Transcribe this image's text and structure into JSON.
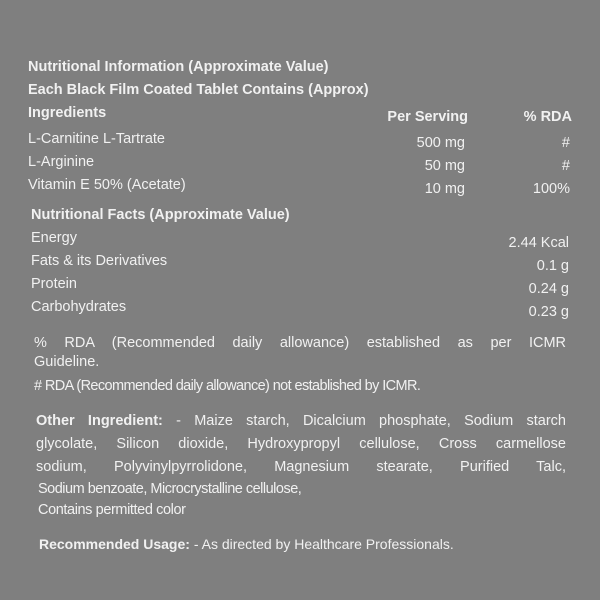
{
  "title": "Nutritional Information (Approximate Value)",
  "subtitle": "Each Black Film Coated Tablet Contains (Approx)",
  "ingredients_table": {
    "headers": [
      "Ingredients",
      "Per Serving",
      "% RDA"
    ],
    "rows": [
      {
        "name": "L-Carnitine L-Tartrate",
        "per_serving": "500 mg",
        "rda": "#"
      },
      {
        "name": "L-Arginine",
        "per_serving": "50 mg",
        "rda": "#"
      },
      {
        "name": "Vitamin E 50% (Acetate)",
        "per_serving": "10 mg",
        "rda": "100%"
      }
    ]
  },
  "facts": {
    "heading": "Nutritional Facts (Approximate Value)",
    "rows": [
      {
        "name": "Energy",
        "value": "2.44 Kcal"
      },
      {
        "name": "Fats & its Derivatives",
        "value": "0.1 g"
      },
      {
        "name": "Protein",
        "value": "0.24 g"
      },
      {
        "name": "Carbohydrates",
        "value": "0.23 g"
      }
    ]
  },
  "notes": {
    "rda_line1": "% RDA (Recommended daily allowance) established as per ICMR",
    "rda_line2": "Guideline.",
    "hash_note": "# RDA (Recommended daily allowance) not established by ICMR."
  },
  "other_ingredient": {
    "label": "Other Ingredient:",
    "lines": [
      "- Maize starch, Dicalcium phosphate, Sodium starch",
      "glycolate, Silicon dioxide, Hydroxypropyl cellulose, Cross carmellose",
      "sodium, Polyvinylpyrrolidone, Magnesium stearate, Purified Talc,",
      "Sodium benzoate, Microcrystalline cellulose,",
      "Contains permitted color"
    ]
  },
  "usage": {
    "label": "Recommended Usage:",
    "text": "- As directed by Healthcare Professionals."
  }
}
